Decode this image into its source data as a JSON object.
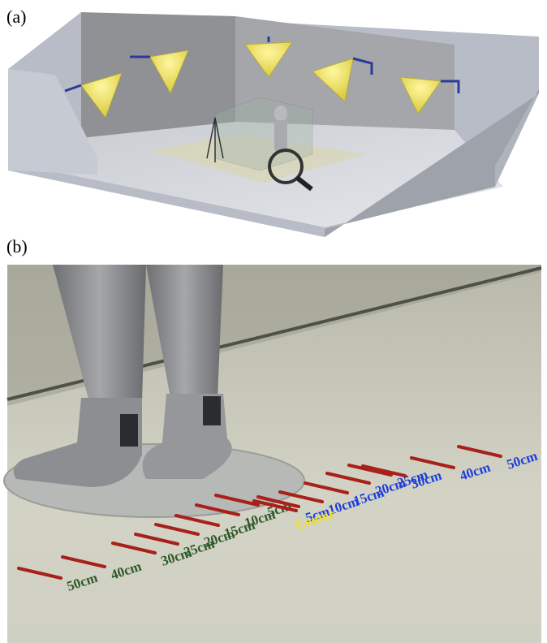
{
  "panels": [
    {
      "label": "(a)"
    },
    {
      "label": "(b)",
      "markers": {
        "left": [
          "50cm",
          "40cm",
          "30cm",
          "25cm",
          "20cm",
          "15cm",
          "10cm",
          "5cm"
        ],
        "center": "Center",
        "right": [
          "5cm",
          "10cm",
          "15cm",
          "20cm",
          "25cm",
          "30cm",
          "40cm",
          "50cm"
        ]
      }
    }
  ]
}
